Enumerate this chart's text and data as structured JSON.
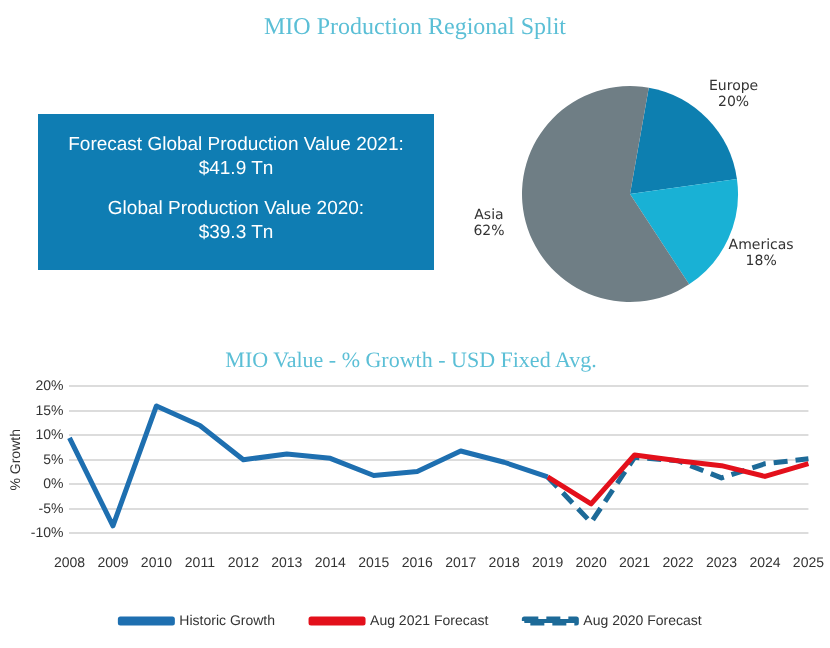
{
  "chart_data": [
    {
      "type": "pie",
      "title": "MIO Production Regional Split",
      "categories": [
        "Europe",
        "Americas",
        "Asia"
      ],
      "values": [
        20,
        18,
        62
      ],
      "colors": [
        "#0d7fb0",
        "#19b1d5",
        "#6f7e85"
      ],
      "value_labels": [
        "20%",
        "18%",
        "62%"
      ],
      "legend": false
    },
    {
      "type": "other",
      "annotations": [
        "Forecast Global Production Value 2021:",
        "$41.9 Tn",
        "Global Production Value 2020:",
        "$39.3 Tn"
      ]
    },
    {
      "type": "line",
      "title": "MIO Value - % Growth - USD Fixed Avg.",
      "ylabel": "% Growth",
      "categories": [
        "2008",
        "2009",
        "2010",
        "2011",
        "2012",
        "2013",
        "2014",
        "2015",
        "2016",
        "2017",
        "2018",
        "2019",
        "2020",
        "2021",
        "2022",
        "2023",
        "2024",
        "2025"
      ],
      "series": [
        {
          "name": "Historic Growth",
          "color": "#1e6fb0",
          "line_style": "solid",
          "values": [
            9.5,
            -8.5,
            16,
            12,
            5,
            6.2,
            5.3,
            1.8,
            2.6,
            6.8,
            4.5,
            1.5,
            null,
            null,
            null,
            null,
            null,
            null
          ]
        },
        {
          "name": "Aug 2021 Forecast",
          "color": "#e3101b",
          "line_style": "solid",
          "values": [
            null,
            null,
            null,
            null,
            null,
            null,
            null,
            null,
            null,
            null,
            null,
            1.5,
            -4,
            6,
            4.8,
            3.8,
            1.6,
            4.2
          ]
        },
        {
          "name": "Aug 2020 Forecast",
          "color": "#1d6a98",
          "line_style": "dashed",
          "values": [
            null,
            null,
            null,
            null,
            null,
            null,
            null,
            null,
            null,
            null,
            null,
            1.5,
            -7.8,
            5.5,
            4.8,
            1.3,
            4.2,
            5.2
          ]
        }
      ],
      "ylim": [
        -10,
        20
      ],
      "yticks": [
        {
          "value": -10,
          "label": "-10%"
        },
        {
          "value": -5,
          "label": "-5%"
        },
        {
          "value": 0,
          "label": "0%"
        },
        {
          "value": 5,
          "label": "5%"
        },
        {
          "value": 10,
          "label": "10%"
        },
        {
          "value": 15,
          "label": "15%"
        },
        {
          "value": 20,
          "label": "20%"
        }
      ],
      "grid": "y",
      "legend": "bottom",
      "marker": "none"
    }
  ]
}
